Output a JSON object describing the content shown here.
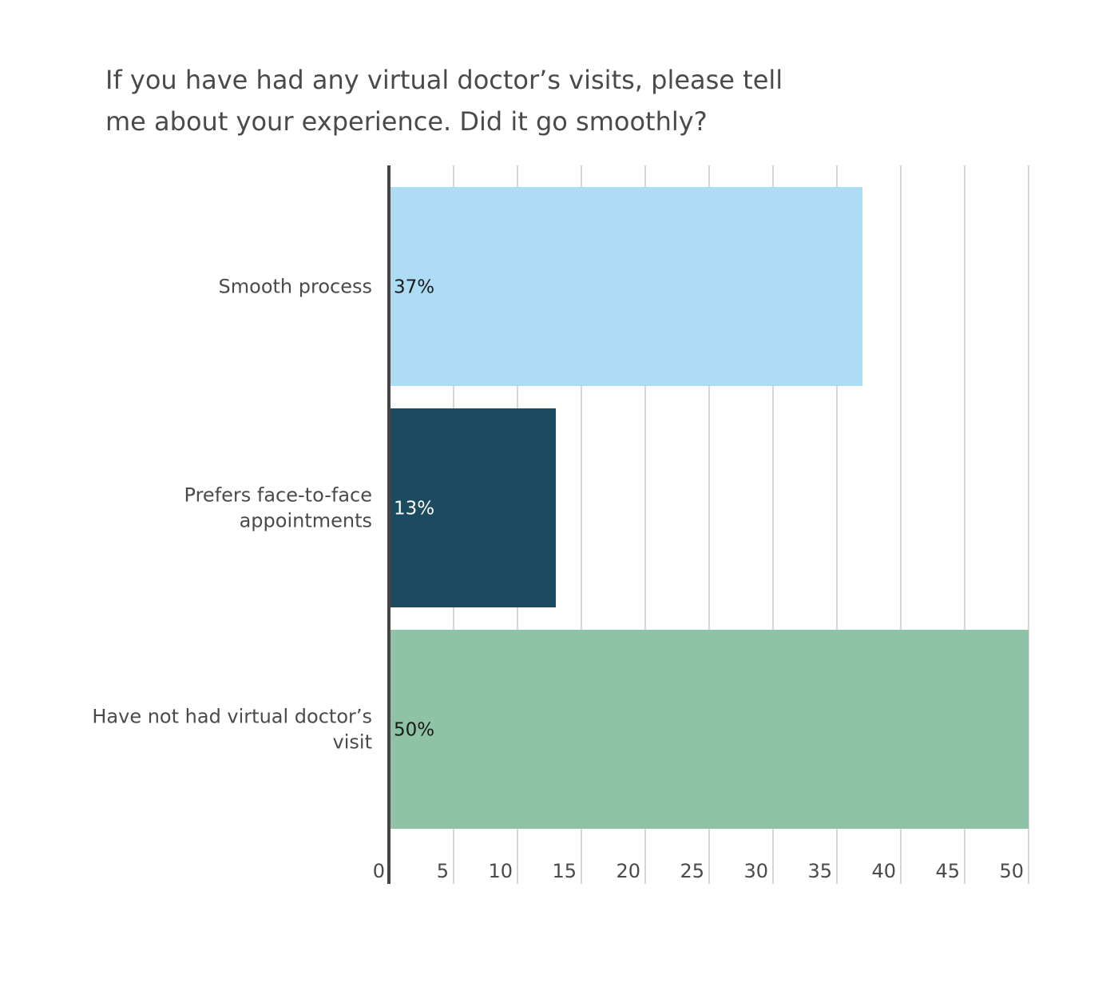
{
  "chart_data": {
    "type": "bar",
    "orientation": "horizontal",
    "title_lines": [
      "If you have had any virtual doctor’s visits, please tell",
      "me about your experience. Did it go smoothly?"
    ],
    "categories": [
      [
        "Smooth process"
      ],
      [
        "Prefers face-to-face",
        "appointments"
      ],
      [
        "Have not had virtual doctor’s",
        "visit"
      ]
    ],
    "values": [
      37,
      13,
      50
    ],
    "data_labels": [
      "37%",
      "13%",
      "50%"
    ],
    "bar_colors": [
      "#addcf4",
      "#1c4a5f",
      "#8fc3a8"
    ],
    "label_colors": [
      "#1a1a1a",
      "#ffffff",
      "#1a1a1a"
    ],
    "xlim": [
      0,
      50
    ],
    "xticks": [
      0,
      5,
      10,
      15,
      20,
      25,
      30,
      35,
      40,
      45,
      50
    ],
    "grid": true,
    "xlabel": "",
    "ylabel": ""
  }
}
